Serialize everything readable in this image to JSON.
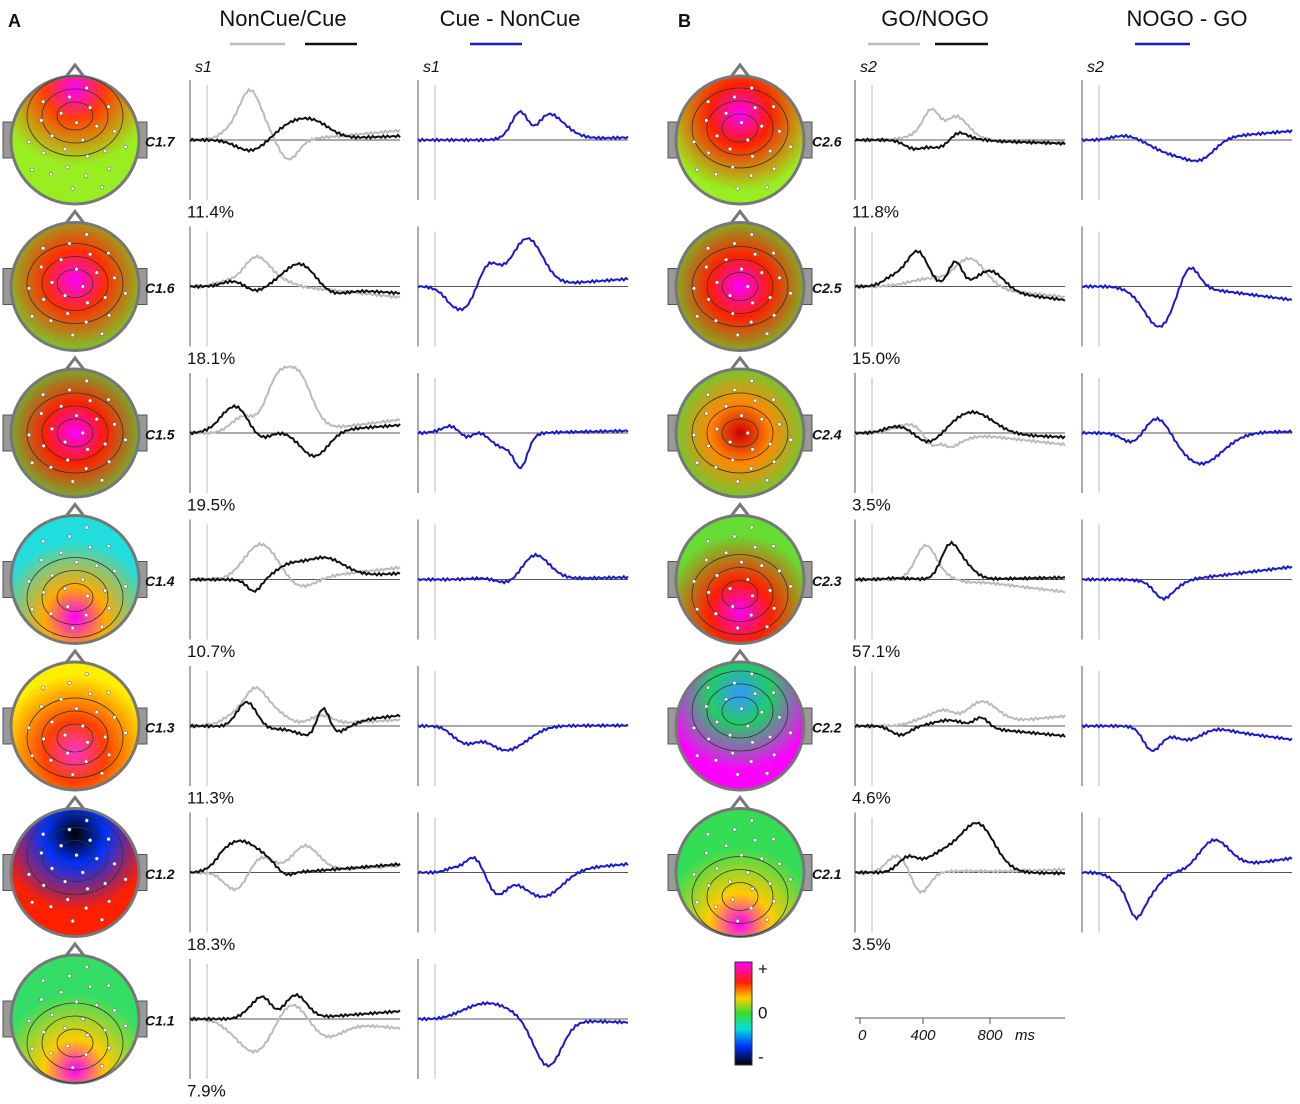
{
  "panels": [
    {
      "label": "A",
      "stimulus": "s1",
      "headers": [
        "NonCue/Cue",
        "Cue - NonCue"
      ],
      "components": [
        {
          "name": "C1.7",
          "variance": "11.4%"
        },
        {
          "name": "C1.6",
          "variance": "18.1%"
        },
        {
          "name": "C1.5",
          "variance": "19.5%"
        },
        {
          "name": "C1.4",
          "variance": "10.7%"
        },
        {
          "name": "C1.3",
          "variance": "11.3%"
        },
        {
          "name": "C1.2",
          "variance": "18.3%"
        },
        {
          "name": "C1.1",
          "variance": "7.9%"
        }
      ]
    },
    {
      "label": "B",
      "stimulus": "s2",
      "headers": [
        "GO/NOGO",
        "NOGO - GO"
      ],
      "components": [
        {
          "name": "C2.6",
          "variance": "11.8%"
        },
        {
          "name": "C2.5",
          "variance": "15.0%"
        },
        {
          "name": "C2.4",
          "variance": "3.5%"
        },
        {
          "name": "C2.3",
          "variance": "57.1%"
        },
        {
          "name": "C2.2",
          "variance": "4.6%"
        },
        {
          "name": "C2.1",
          "variance": "3.5%"
        }
      ]
    }
  ],
  "color_scale": {
    "max": "+",
    "zero": "0",
    "min": "-"
  },
  "time_axis": {
    "ticks": [
      "0",
      "400",
      "800"
    ],
    "unit": "ms"
  }
}
